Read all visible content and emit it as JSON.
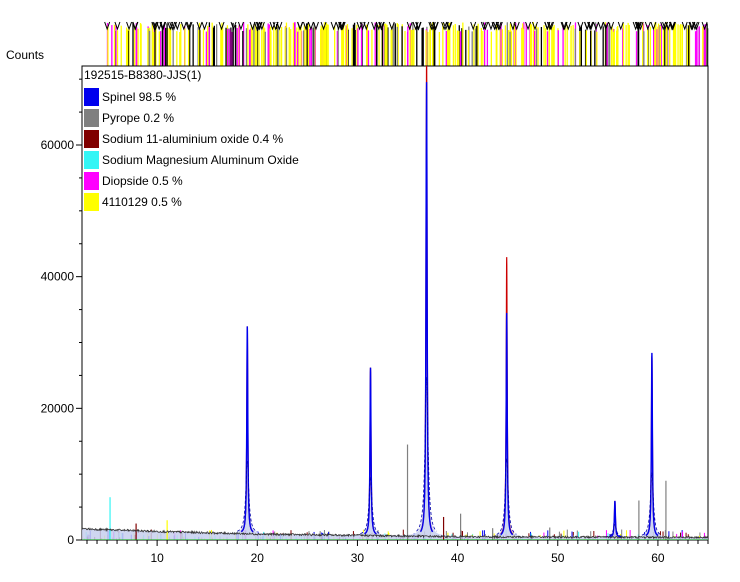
{
  "chart_data": {
    "type": "line",
    "ylabel": "Counts",
    "xlabel": "",
    "sample_name": "192515-B8380-JJS(1)",
    "xlim": [
      2.5,
      65
    ],
    "ylim": [
      0,
      72000
    ],
    "x_ticks": [
      10,
      20,
      30,
      40,
      50,
      60
    ],
    "y_ticks": [
      0,
      20000,
      40000,
      60000
    ],
    "legend": [
      {
        "label": "Spinel 98.5 %",
        "color": "#0000ee"
      },
      {
        "label": "Pyrope 0.2 %",
        "color": "#808080"
      },
      {
        "label": "Sodium 11-aluminium oxide 0.4 %",
        "color": "#800000"
      },
      {
        "label": "Sodium Magnesium Aluminum Oxide",
        "color": "#33f5f5"
      },
      {
        "label": "Diopside 0.5 %",
        "color": "#ff00ff"
      },
      {
        "label": "4110129 0.5 %",
        "color": "#ffff00"
      }
    ],
    "peaks_observed": [
      {
        "x": 19.0,
        "y": 31500
      },
      {
        "x": 31.3,
        "y": 25500
      },
      {
        "x": 36.9,
        "y": 73000
      },
      {
        "x": 44.9,
        "y": 42500
      },
      {
        "x": 55.7,
        "y": 5500
      },
      {
        "x": 59.4,
        "y": 27500
      }
    ],
    "peaks_calculated": [
      {
        "x": 19.0,
        "y": 31500
      },
      {
        "x": 31.3,
        "y": 25500
      },
      {
        "x": 36.9,
        "y": 69000
      },
      {
        "x": 44.9,
        "y": 34000
      },
      {
        "x": 55.7,
        "y": 5500
      },
      {
        "x": 59.4,
        "y": 28000
      }
    ],
    "background": [
      [
        2.5,
        1700
      ],
      [
        10,
        1300
      ],
      [
        20,
        900
      ],
      [
        30,
        700
      ],
      [
        40,
        500
      ],
      [
        50,
        450
      ],
      [
        65,
        400
      ]
    ],
    "reference_sticks": [
      {
        "x": 5.3,
        "y": 6500,
        "color": "#33f5f5"
      },
      {
        "x": 7.9,
        "y": 2500,
        "color": "#800000"
      },
      {
        "x": 11.0,
        "y": 3000,
        "color": "#ffff00"
      },
      {
        "x": 35.0,
        "y": 14500,
        "color": "#808080"
      },
      {
        "x": 38.6,
        "y": 3500,
        "color": "#800000"
      },
      {
        "x": 40.3,
        "y": 4000,
        "color": "#808080"
      },
      {
        "x": 43.5,
        "y": 1800,
        "color": "#808080"
      },
      {
        "x": 49.2,
        "y": 1900,
        "color": "#808080"
      },
      {
        "x": 58.1,
        "y": 6000,
        "color": "#808080"
      },
      {
        "x": 60.8,
        "y": 9000,
        "color": "#808080"
      }
    ]
  }
}
